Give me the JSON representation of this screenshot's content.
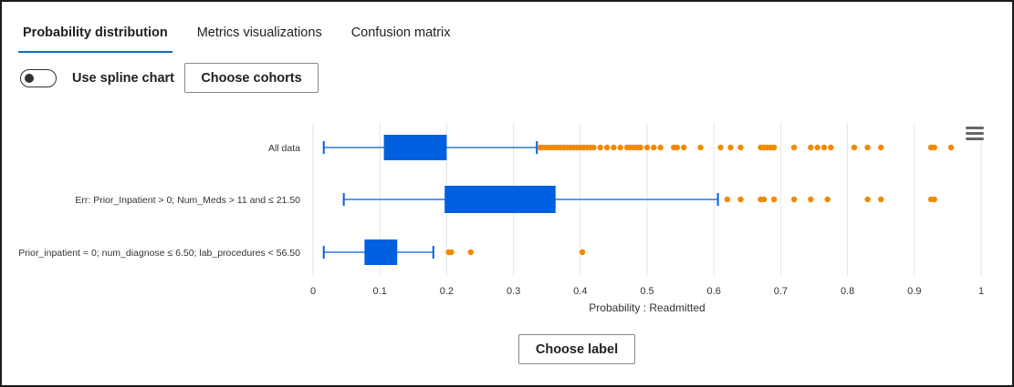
{
  "tabs": [
    {
      "label": "Probability distribution",
      "active": true
    },
    {
      "label": "Metrics visualizations",
      "active": false
    },
    {
      "label": "Confusion matrix",
      "active": false
    }
  ],
  "controls": {
    "toggle_label": "Use spline chart",
    "toggle_on": false,
    "choose_cohorts": "Choose cohorts"
  },
  "footer": {
    "choose_label": "Choose label"
  },
  "colors": {
    "box": "#0060df",
    "outlier": "#f28a00",
    "accent": "#0f6cbd"
  },
  "chart_data": {
    "type": "boxplot",
    "orientation": "horizontal",
    "xlabel": "Probability : Readmitted",
    "xlim": [
      0,
      1
    ],
    "xticks": [
      "0",
      "0.1",
      "0.2",
      "0.3",
      "0.4",
      "0.5",
      "0.6",
      "0.7",
      "0.8",
      "0.9",
      "1"
    ],
    "grid": true,
    "categories": [
      "All data",
      "Err: Prior_Inpatient > 0; Num_Meds > 11 and ≤ 21.50",
      "Prior_inpatient = 0; num_diagnose ≤ 6.50; lab_procedures < 56.50"
    ],
    "boxes": [
      {
        "low": 0.016,
        "q1": 0.106,
        "median": 0.15,
        "q3": 0.2,
        "high": 0.335,
        "outliers": [
          0.34,
          0.345,
          0.35,
          0.355,
          0.36,
          0.365,
          0.37,
          0.375,
          0.38,
          0.385,
          0.39,
          0.395,
          0.4,
          0.405,
          0.41,
          0.415,
          0.42,
          0.43,
          0.44,
          0.45,
          0.46,
          0.47,
          0.475,
          0.48,
          0.485,
          0.49,
          0.5,
          0.51,
          0.52,
          0.54,
          0.545,
          0.555,
          0.58,
          0.61,
          0.625,
          0.64,
          0.67,
          0.675,
          0.68,
          0.685,
          0.69,
          0.72,
          0.745,
          0.755,
          0.765,
          0.775,
          0.81,
          0.83,
          0.85,
          0.925,
          0.93,
          0.955
        ]
      },
      {
        "low": 0.046,
        "q1": 0.197,
        "median": 0.28,
        "q3": 0.363,
        "high": 0.606,
        "outliers": [
          0.62,
          0.64,
          0.67,
          0.675,
          0.69,
          0.72,
          0.745,
          0.77,
          0.83,
          0.85,
          0.925,
          0.93
        ]
      },
      {
        "low": 0.016,
        "q1": 0.077,
        "median": 0.1,
        "q3": 0.126,
        "high": 0.18,
        "outliers": [
          0.203,
          0.207,
          0.236,
          0.403
        ]
      }
    ]
  }
}
